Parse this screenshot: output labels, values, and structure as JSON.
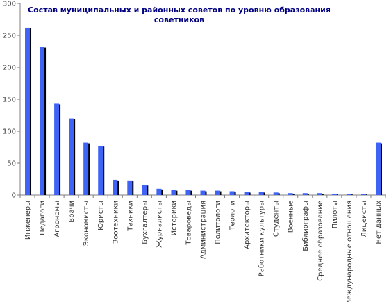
{
  "chart_data": {
    "type": "bar",
    "title_lines": [
      "Состав муниципальных и районных советов по уровню образования",
      "советников"
    ],
    "categories": [
      "Инженеры",
      "Педагоги",
      "Агрономы",
      "Врачи",
      "Экономисты",
      "Юристы",
      "Зоотехники",
      "Техники",
      "Бухгалтеры",
      "Журналисты",
      "Историки",
      "Товароведы",
      "Администрация",
      "Политологи",
      "Теологи",
      "Архитекторы",
      "Работники культуры",
      "Студенты",
      "Военные",
      "Библиографы",
      "Среднее образование",
      "Пилоты",
      "Международные отношения",
      "Лицеисты",
      "Нет данных"
    ],
    "values": [
      262,
      232,
      143,
      120,
      82,
      77,
      24,
      23,
      16,
      10,
      8,
      8,
      7,
      7,
      6,
      5,
      5,
      4,
      3,
      3,
      3,
      2,
      2,
      2,
      82
    ],
    "ylim": [
      0,
      300
    ],
    "yticks": [
      0,
      50,
      100,
      150,
      200,
      250,
      300
    ],
    "grid": false,
    "legend": "none",
    "colors": {
      "bar": "#3f63f5",
      "shadow": "#000000",
      "axis": "#7f7f7f"
    }
  }
}
